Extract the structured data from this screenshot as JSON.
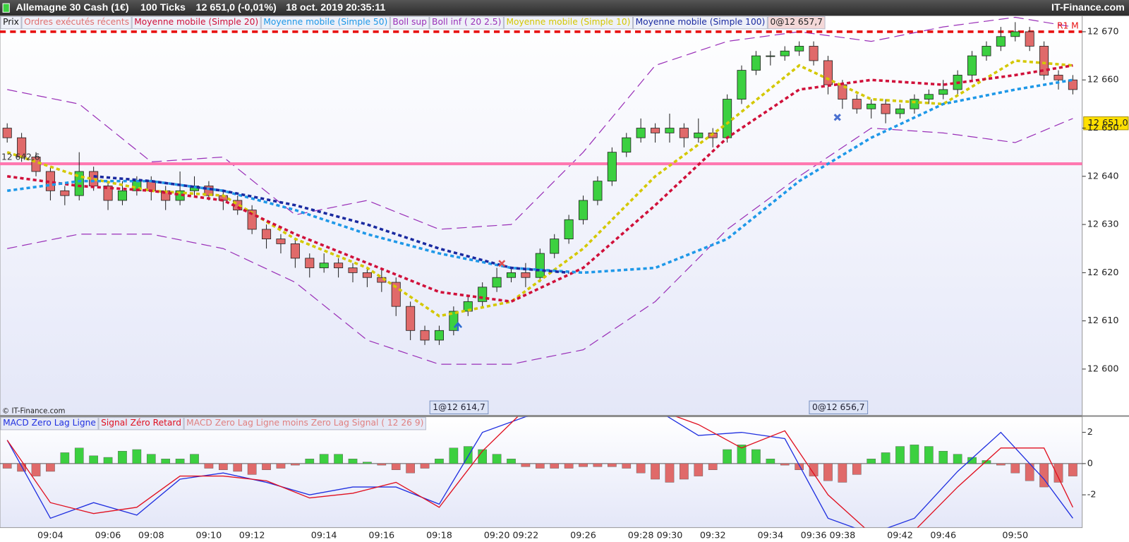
{
  "chart_data": {
    "type": "candlestick",
    "title": "Allemagne 30 Cash (1€)",
    "interval": "100 Ticks",
    "quote": "12 651,0 (-0,01%)",
    "timestamp": "18 oct. 2019 20:35:11",
    "brand": "IT-Finance.com",
    "copyright": "© IT-Finance.com",
    "candles_name": "Prix",
    "orders_label": "Ordres exécutés récents",
    "last_order": "0@12 657,7",
    "orders": [
      "1@12 614,7",
      "0@12 656,7"
    ],
    "up_color": "#3cd040",
    "down_color": "#e06a6a",
    "categories": [
      null,
      null,
      null,
      "09:04",
      null,
      null,
      null,
      "09:06",
      null,
      null,
      "09:08",
      null,
      null,
      null,
      "09:10",
      null,
      null,
      "09:12",
      null,
      null,
      null,
      null,
      "09:14",
      null,
      null,
      null,
      "09:16",
      null,
      null,
      null,
      "09:18",
      null,
      null,
      null,
      "09:20",
      null,
      "09:22",
      null,
      null,
      null,
      "09:26",
      null,
      null,
      null,
      "09:28",
      null,
      "09:30",
      null,
      null,
      "09:32",
      null,
      null,
      null,
      "09:34",
      null,
      null,
      "09:36",
      null,
      "09:38",
      null,
      null,
      null,
      "09:42",
      null,
      null,
      "09:46",
      null,
      null,
      null,
      null,
      "09:50",
      null,
      null,
      null,
      null
    ],
    "open": [
      12650,
      12648,
      12644,
      12641,
      12637,
      12636,
      12641,
      12638,
      12635,
      12637,
      12639,
      12637,
      12635,
      12637,
      12638,
      12636,
      12635,
      12633,
      12629,
      12627,
      12626,
      12623,
      12621,
      12622,
      12621,
      12620,
      12619,
      12618,
      12613,
      12608,
      12606,
      12608,
      12612,
      12614,
      12617,
      12619,
      12620,
      12619,
      12624,
      12627,
      12631,
      12635,
      12639,
      12645,
      12648,
      12650,
      12649,
      12650,
      12648,
      12649,
      12648,
      12656,
      12662,
      12665,
      12665,
      12666,
      12667,
      12664,
      12659,
      12656,
      12654,
      12655,
      12653,
      12654,
      12656,
      12657,
      12658,
      12661,
      12665,
      12667,
      12669,
      12670,
      12667,
      12661,
      12660
    ],
    "high": [
      12651,
      12649,
      12645,
      12642,
      12638,
      12645,
      12642,
      12639,
      12639,
      12640,
      12640,
      12638,
      12641,
      12640,
      12639,
      12637,
      12636,
      12634,
      12630,
      12628,
      12627,
      12624,
      12624,
      12623,
      12622,
      12621,
      12621,
      12619,
      12614,
      12609,
      12609,
      12613,
      12615,
      12618,
      12621,
      12621,
      12622,
      12625,
      12628,
      12632,
      12636,
      12640,
      12646,
      12649,
      12652,
      12651,
      12653,
      12651,
      12652,
      12650,
      12657,
      12663,
      12666,
      12666,
      12667,
      12668,
      12668,
      12665,
      12660,
      12657,
      12656,
      12656,
      12655,
      12657,
      12658,
      12660,
      12662,
      12666,
      12668,
      12671,
      12672,
      12671,
      12668,
      12662,
      12661
    ],
    "low": [
      12647,
      12643,
      12640,
      12635,
      12634,
      12635,
      12637,
      12633,
      12634,
      12636,
      12635,
      12633,
      12634,
      12636,
      12635,
      12633,
      12632,
      12628,
      12625,
      12624,
      12621,
      12619,
      12620,
      12619,
      12618,
      12617,
      12616,
      12611,
      12606,
      12605,
      12605,
      12607,
      12611,
      12613,
      12616,
      12618,
      12617,
      12618,
      12623,
      12626,
      12630,
      12634,
      12638,
      12644,
      12647,
      12647,
      12647,
      12646,
      12647,
      12646,
      12647,
      12655,
      12661,
      12663,
      12664,
      12665,
      12663,
      12657,
      12654,
      12653,
      12652,
      12651,
      12652,
      12653,
      12655,
      12656,
      12657,
      12660,
      12664,
      12666,
      12668,
      12666,
      12660,
      12658,
      12657
    ],
    "close": [
      12648,
      12644,
      12641,
      12637,
      12636,
      12641,
      12638,
      12635,
      12637,
      12639,
      12637,
      12635,
      12637,
      12638,
      12636,
      12635,
      12633,
      12629,
      12627,
      12626,
      12623,
      12621,
      12622,
      12621,
      12620,
      12619,
      12618,
      12613,
      12608,
      12606,
      12608,
      12612,
      12614,
      12617,
      12619,
      12620,
      12619,
      12624,
      12627,
      12631,
      12635,
      12639,
      12645,
      12648,
      12650,
      12649,
      12650,
      12648,
      12649,
      12648,
      12656,
      12662,
      12665,
      12665,
      12666,
      12667,
      12664,
      12659,
      12656,
      12654,
      12655,
      12653,
      12654,
      12656,
      12657,
      12658,
      12661,
      12665,
      12667,
      12669,
      12670,
      12667,
      12661,
      12660,
      12658
    ],
    "ylim": [
      12590.4,
      12673.3
    ],
    "yticks": [
      {
        "value": 12600,
        "label": "12 600"
      },
      {
        "value": 12610,
        "label": "12 610"
      },
      {
        "value": 12620,
        "label": "12 620"
      },
      {
        "value": 12630,
        "label": "12 630"
      },
      {
        "value": 12640,
        "label": "12 640"
      },
      {
        "value": 12650,
        "label": "12 650"
      },
      {
        "value": 12660,
        "label": "12 660"
      },
      {
        "value": 12670,
        "label": "12 670"
      }
    ],
    "lines": [
      {
        "name": "Moyenne mobile (Simple 10)",
        "color": "#d4c800",
        "style": "dashed",
        "x": [
          0,
          5,
          10,
          15,
          20,
          25,
          30,
          35,
          40,
          45,
          50,
          55,
          60,
          65,
          70,
          74
        ],
        "values": [
          12645,
          12640,
          12637,
          12636,
          12627,
          12621,
          12611,
          12614,
          12625,
          12640,
          12651,
          12663,
          12656,
          12655,
          12664,
          12663
        ]
      },
      {
        "name": "Moyenne mobile (Simple 20)",
        "color": "#d0103a",
        "style": "dashed",
        "x": [
          0,
          5,
          10,
          15,
          20,
          25,
          30,
          35,
          40,
          45,
          50,
          55,
          60,
          65,
          70,
          74
        ],
        "values": [
          12640,
          12638,
          12637,
          12635,
          12628,
          12622,
          12616,
          12614,
          12621,
          12634,
          12648,
          12658,
          12660,
          12659,
          12661,
          12663
        ]
      },
      {
        "name": "Moyenne mobile (Simple 50)",
        "color": "#1e98e8",
        "style": "dashed",
        "x": [
          0,
          5,
          10,
          15,
          20,
          25,
          30,
          35,
          40,
          45,
          50,
          55,
          60,
          65,
          70,
          74
        ],
        "values": [
          12637,
          12639,
          12639,
          12637,
          12633,
          12628,
          12624,
          12621,
          12620,
          12621,
          12627,
          12639,
          12648,
          12655,
          12658,
          12660
        ]
      },
      {
        "name": "Moyenne mobile (Simple 100)",
        "color": "#1a2aa0",
        "style": "dashed",
        "x": [
          6,
          10,
          15,
          20,
          25,
          30,
          35,
          39
        ],
        "values": [
          12640,
          12639,
          12637,
          12634,
          12630,
          12625,
          12621,
          12620
        ]
      },
      {
        "name": "Boll sup",
        "color": "#9a30b8",
        "style": "long-dash",
        "x": [
          0,
          5,
          10,
          15,
          20,
          25,
          30,
          35,
          40,
          45,
          50,
          55,
          60,
          65,
          70,
          74
        ],
        "values": [
          12658,
          12655,
          12643,
          12644,
          12632,
          12635,
          12629,
          12630,
          12645,
          12663,
          12668,
          12670,
          12668,
          12671,
          12673,
          12671
        ]
      },
      {
        "name": "Boll inf ( 20 2.5)",
        "color": "#9a30b8",
        "style": "long-dash",
        "x": [
          0,
          5,
          10,
          15,
          20,
          25,
          30,
          35,
          40,
          45,
          50,
          55,
          60,
          65,
          70,
          74
        ],
        "values": [
          12625,
          12628,
          12628,
          12625,
          12618,
          12606,
          12601,
          12601,
          12604,
          12614,
          12629,
          12640,
          12650,
          12649,
          12647,
          12652
        ]
      }
    ],
    "pivot": {
      "value": 12642.6,
      "label": "12 642,6",
      "color": "#ff78b0"
    },
    "resistance": {
      "value": 12670,
      "label": "R1 M",
      "color": "#e81010"
    },
    "last_price": {
      "value": 12651,
      "label": "12 651,0",
      "color": "#ffe000"
    },
    "macd": {
      "ylim": [
        -4.1,
        3.0
      ],
      "yticks": [
        -2,
        0,
        2
      ],
      "hist_name": "MACD Zero Lag Ligne moins Zero Lag Signal ( 12 26 9)",
      "hist": [
        -0.3,
        -0.5,
        -0.8,
        -0.5,
        0.7,
        1.0,
        0.5,
        0.4,
        0.8,
        0.9,
        0.6,
        0.3,
        0.3,
        0.6,
        -0.3,
        -0.4,
        -0.5,
        -0.7,
        -0.4,
        -0.3,
        -0.1,
        0.3,
        0.6,
        0.6,
        0.3,
        0.1,
        -0.1,
        -0.4,
        -0.6,
        -0.3,
        0.3,
        1.0,
        1.1,
        0.9,
        0.6,
        0.3,
        -0.2,
        -0.3,
        -0.3,
        -0.3,
        -0.2,
        -0.2,
        -0.2,
        -0.3,
        -0.6,
        -1.0,
        -1.2,
        -1.0,
        -0.8,
        -0.4,
        0.9,
        1.2,
        0.9,
        0.3,
        -0.1,
        -0.4,
        -0.8,
        -1.1,
        -1.2,
        -0.7,
        0.3,
        0.7,
        1.1,
        1.2,
        1.1,
        0.8,
        0.6,
        0.4,
        0.2,
        -0.1,
        -0.6,
        -1.1,
        -1.5,
        -1.2,
        -0.8
      ],
      "series": [
        {
          "name": "MACD Zero Lag Ligne",
          "color": "#2030e0",
          "x": [
            0,
            3,
            6,
            9,
            12,
            15,
            18,
            21,
            24,
            27,
            30,
            33,
            36,
            39,
            42,
            45,
            48,
            51,
            54,
            57,
            60,
            63,
            66,
            69,
            72,
            74
          ],
          "values": [
            1.5,
            -3.5,
            -2.5,
            -3.3,
            -1.0,
            -0.6,
            -1.2,
            -2.0,
            -1.5,
            -1.5,
            -2.6,
            2.0,
            3.0,
            3.5,
            3.5,
            3.5,
            1.8,
            2.0,
            1.6,
            -3.5,
            -4.5,
            -3.5,
            -0.5,
            2.0,
            -1.0,
            -3.5
          ]
        },
        {
          "name": "Signal Zéro Retard",
          "color": "#e01020",
          "x": [
            0,
            3,
            6,
            9,
            12,
            15,
            18,
            21,
            24,
            27,
            30,
            33,
            36,
            39,
            42,
            45,
            48,
            51,
            54,
            57,
            60,
            63,
            66,
            69,
            72,
            74
          ],
          "values": [
            1.5,
            -2.5,
            -3.2,
            -2.8,
            -0.8,
            -0.8,
            -1.1,
            -2.2,
            -1.9,
            -1.2,
            -2.8,
            0.8,
            3.5,
            3.5,
            3.5,
            3.5,
            2.5,
            1.0,
            2.1,
            -2.0,
            -4.5,
            -4.3,
            -1.5,
            1.0,
            1.0,
            -2.8
          ]
        }
      ]
    }
  }
}
